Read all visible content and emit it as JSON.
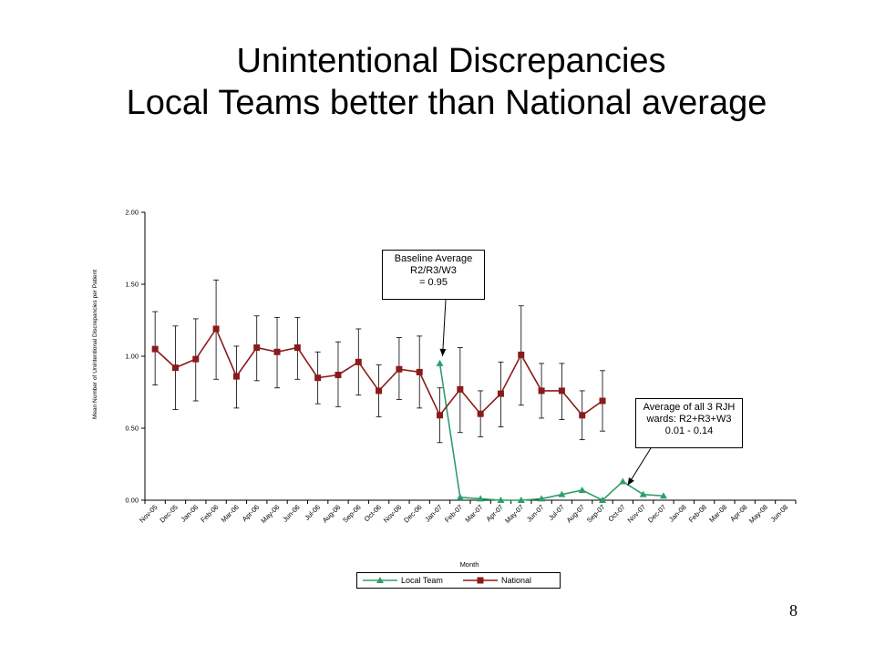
{
  "title": {
    "line1": "Unintentional Discrepancies",
    "line2": "Local Teams better than National average"
  },
  "slide_number": "8",
  "colors": {
    "local_team": "#2e9e6b",
    "national": "#8b1a1a",
    "error_bar": "#000000"
  },
  "annotations": {
    "baseline": [
      "Baseline Average",
      "R2/R3/W3",
      "= 0.95"
    ],
    "average": [
      "Average of all 3 RJH",
      "wards: R2+R3+W3",
      "0.01 - 0.14"
    ]
  },
  "chart_data": {
    "type": "line",
    "title": "",
    "xlabel": "Month",
    "ylabel": "Mean Number of Unintentional Discrepancies per Patient",
    "ylim": [
      0,
      2
    ],
    "yticks": [
      "0.00",
      "0.50",
      "1.00",
      "1.50",
      "2.00"
    ],
    "grid": false,
    "legend_position": "bottom",
    "categories": [
      "Nov-05",
      "Dec-05",
      "Jan-06",
      "Feb-06",
      "Mar-06",
      "Apr-06",
      "May-06",
      "Jun-06",
      "Jul-06",
      "Aug-06",
      "Sep-06",
      "Oct-06",
      "Nov-06",
      "Dec-06",
      "Jan-07",
      "Feb-07",
      "Mar-07",
      "Apr-07",
      "May-07",
      "Jun-07",
      "Jul-07",
      "Aug-07",
      "Sep-07",
      "Oct-07",
      "Nov-07",
      "Dec-07",
      "Jan-08",
      "Feb-08",
      "Mar-08",
      "Apr-08",
      "May-08",
      "Jun-08"
    ],
    "series": [
      {
        "name": "Local Team",
        "marker": "triangle",
        "values": [
          null,
          null,
          null,
          null,
          null,
          null,
          null,
          null,
          null,
          null,
          null,
          null,
          null,
          null,
          0.95,
          0.02,
          0.01,
          0.0,
          0.0,
          0.01,
          0.04,
          0.07,
          0.0,
          0.13,
          0.04,
          0.03,
          null,
          null,
          null,
          null,
          null,
          null
        ]
      },
      {
        "name": "National",
        "marker": "square",
        "values": [
          1.05,
          0.92,
          0.98,
          1.19,
          0.86,
          1.06,
          1.03,
          1.06,
          0.85,
          0.87,
          0.96,
          0.76,
          0.91,
          0.89,
          0.59,
          0.77,
          0.6,
          0.74,
          1.01,
          0.76,
          0.76,
          0.59,
          0.69,
          null,
          null,
          null,
          null,
          null,
          null,
          null,
          null,
          null
        ],
        "error_low": [
          0.8,
          0.63,
          0.69,
          0.84,
          0.64,
          0.83,
          0.78,
          0.84,
          0.67,
          0.65,
          0.73,
          0.58,
          0.7,
          0.64,
          0.4,
          0.47,
          0.44,
          0.51,
          0.66,
          0.57,
          0.56,
          0.42,
          0.48,
          null,
          null,
          null,
          null,
          null,
          null,
          null,
          null,
          null
        ],
        "error_high": [
          1.31,
          1.21,
          1.26,
          1.53,
          1.07,
          1.28,
          1.27,
          1.27,
          1.03,
          1.1,
          1.19,
          0.94,
          1.13,
          1.14,
          0.78,
          1.06,
          0.76,
          0.96,
          1.35,
          0.95,
          0.95,
          0.76,
          0.9,
          null,
          null,
          null,
          null,
          null,
          null,
          null,
          null,
          null
        ]
      }
    ]
  }
}
